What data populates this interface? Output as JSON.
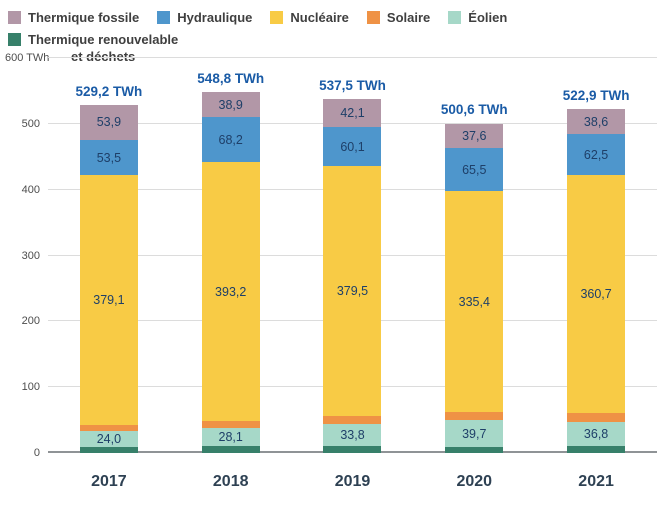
{
  "chart_data": {
    "type": "bar",
    "variant": "stacked",
    "unit": "TWh",
    "categories": [
      "2017",
      "2018",
      "2019",
      "2020",
      "2021"
    ],
    "totals": [
      "529,2 TWh",
      "548,8 TWh",
      "537,5 TWh",
      "500,6 TWh",
      "522,9 TWh"
    ],
    "y_axis": {
      "min": 0,
      "max": 600,
      "tick_step": 100,
      "gridline_values": [
        0,
        100,
        200,
        300,
        400,
        500,
        600
      ],
      "ticks": [
        {
          "value": 0,
          "label": "0"
        },
        {
          "value": 100,
          "label": "100"
        },
        {
          "value": 200,
          "label": "200"
        },
        {
          "value": 300,
          "label": "300"
        },
        {
          "value": 400,
          "label": "400"
        },
        {
          "value": 500,
          "label": "500"
        },
        {
          "value": 600,
          "label": "600 TWh"
        }
      ]
    },
    "series": [
      {
        "id": "thermique-renouvelable",
        "name": "Thermique renouvelable et déchets",
        "color": "#37806a",
        "values": [
          9.5,
          10.2,
          10.4,
          9.8,
          10.0
        ],
        "labels": [
          "",
          "",
          "",
          "",
          ""
        ]
      },
      {
        "id": "eolien",
        "name": "Éolien",
        "color": "#a6d8c8",
        "values": [
          24.0,
          28.1,
          33.8,
          39.7,
          36.8
        ],
        "labels": [
          "24,0",
          "28,1",
          "33,8",
          "39,7",
          "36,8"
        ]
      },
      {
        "id": "solaire",
        "name": "Solaire",
        "color": "#ef9245",
        "values": [
          9.2,
          10.2,
          11.6,
          12.6,
          14.3
        ],
        "labels": [
          "",
          "",
          "",
          "",
          ""
        ]
      },
      {
        "id": "nucleaire",
        "name": "Nucléaire",
        "color": "#f8cb45",
        "values": [
          379.1,
          393.2,
          379.5,
          335.4,
          360.7
        ],
        "labels": [
          "379,1",
          "393,2",
          "379,5",
          "335,4",
          "360,7"
        ]
      },
      {
        "id": "hydraulique",
        "name": "Hydraulique",
        "color": "#4e96cc",
        "values": [
          53.5,
          68.2,
          60.1,
          65.5,
          62.5
        ],
        "labels": [
          "53,5",
          "68,2",
          "60,1",
          "65,5",
          "62,5"
        ]
      },
      {
        "id": "thermique-fossile",
        "name": "Thermique fossile",
        "color": "#b297a7",
        "values": [
          53.9,
          38.9,
          42.1,
          37.6,
          38.6
        ],
        "labels": [
          "53,9",
          "38,9",
          "42,1",
          "37,6",
          "38,6"
        ]
      }
    ],
    "legend": [
      {
        "id": "thermique-fossile",
        "label": "Thermique fossile",
        "color": "#b297a7"
      },
      {
        "id": "hydraulique",
        "label": "Hydraulique",
        "color": "#4e96cc"
      },
      {
        "id": "nucleaire",
        "label": "Nucléaire",
        "color": "#f8cb45"
      },
      {
        "id": "solaire",
        "label": "Solaire",
        "color": "#ef9245"
      },
      {
        "id": "eolien",
        "label": "Éolien",
        "color": "#a6d8c8"
      },
      {
        "id": "thermique-renouvelable",
        "label": "Thermique renouvelable\net déchets",
        "color": "#37806a"
      }
    ],
    "legend_position": "top"
  }
}
